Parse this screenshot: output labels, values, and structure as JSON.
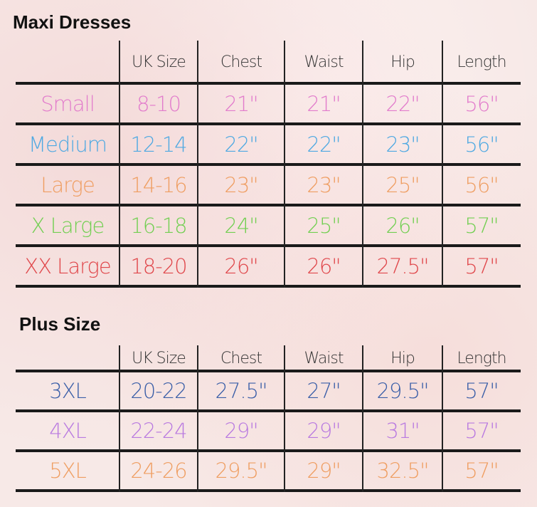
{
  "tables": [
    {
      "title": "Maxi Dresses",
      "headers": [
        "",
        "UK Size",
        "Chest",
        "Waist",
        "Hip",
        "Length"
      ],
      "rows": [
        {
          "color": "#e27ccc",
          "cells": [
            "Small",
            "8-10",
            "21\"",
            "21\"",
            "22\"",
            "56\""
          ]
        },
        {
          "color": "#4fa9e2",
          "cells": [
            "Medium",
            "12-14",
            "22\"",
            "22\"",
            "23\"",
            "56\""
          ]
        },
        {
          "color": "#ef9e62",
          "cells": [
            "Large",
            "14-16",
            "23\"",
            "23\"",
            "25\"",
            "56\""
          ]
        },
        {
          "color": "#72cf52",
          "cells": [
            "X Large",
            "16-18",
            "24\"",
            "25\"",
            "26\"",
            "57\""
          ]
        },
        {
          "color": "#e0474b",
          "cells": [
            "XX Large",
            "18-20",
            "26\"",
            "26\"",
            "27.5\"",
            "57\""
          ]
        }
      ]
    },
    {
      "title": "Plus Size",
      "headers": [
        "",
        "UK Size",
        "Chest",
        "Waist",
        "Hip",
        "Length"
      ],
      "rows": [
        {
          "color": "#3b5fa8",
          "cells": [
            "3XL",
            "20-22",
            "27.5\"",
            "27\"",
            "29.5\"",
            "57\""
          ]
        },
        {
          "color": "#b97ae0",
          "cells": [
            "4XL",
            "22-24",
            "29\"",
            "29\"",
            "31\"",
            "57\""
          ]
        },
        {
          "color": "#ef9e62",
          "cells": [
            "5XL",
            "24-26",
            "29.5\"",
            "29\"",
            "32.5\"",
            "57\""
          ]
        }
      ]
    }
  ]
}
